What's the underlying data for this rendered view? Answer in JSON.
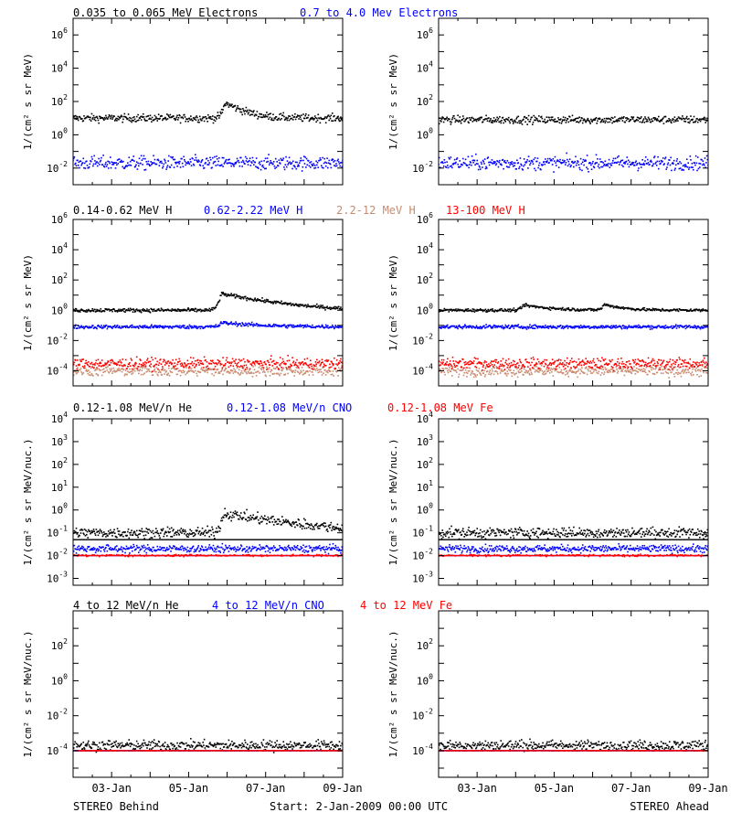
{
  "colors": {
    "black": "#000000",
    "blue": "#0000ff",
    "red": "#ff0000",
    "salmon": "#c98b6f"
  },
  "footer": {
    "left_label": "STEREO Behind",
    "start_label": "Start:  2-Jan-2009 00:00 UTC",
    "right_label": "STEREO Ahead"
  },
  "rows": [
    {
      "legend": [
        {
          "text": "0.035 to 0.065 MeV Electrons",
          "color": "#000000"
        },
        {
          "text": "0.7 to 4.0 Mev Electrons",
          "color": "#0000ff"
        }
      ],
      "ylabel": "1/(cm² s sr MeV)"
    },
    {
      "legend": [
        {
          "text": "0.14-0.62 MeV H",
          "color": "#000000"
        },
        {
          "text": "0.62-2.22 MeV H",
          "color": "#0000ff"
        },
        {
          "text": "2.2-12 MeV H",
          "color": "#c98b6f"
        },
        {
          "text": "13-100 MeV H",
          "color": "#ff0000"
        }
      ],
      "ylabel": "1/(cm² s sr MeV)"
    },
    {
      "legend": [
        {
          "text": "0.12-1.08 MeV/n He",
          "color": "#000000"
        },
        {
          "text": "0.12-1.08 MeV/n CNO",
          "color": "#0000ff"
        },
        {
          "text": "0.12-1.08 MeV Fe",
          "color": "#ff0000"
        }
      ],
      "ylabel": "1/(cm² s sr MeV/nuc.)"
    },
    {
      "legend": [
        {
          "text": "4 to 12 MeV/n He",
          "color": "#000000"
        },
        {
          "text": "4 to 12 MeV/n CNO",
          "color": "#0000ff"
        },
        {
          "text": "4 to 12 MeV Fe",
          "color": "#ff0000"
        }
      ],
      "ylabel": "1/(cm² s sr MeV/nuc.)"
    }
  ],
  "chart_data": [
    {
      "type": "scatter",
      "spacecraft": "STEREO Behind",
      "row": 0,
      "xlim": [
        "2009-01-02",
        "2009-01-09"
      ],
      "x_ticks": [
        "03-Jan",
        "05-Jan",
        "07-Jan",
        "09-Jan"
      ],
      "ylog": true,
      "ylim": [
        0.001,
        10000000
      ],
      "y_ticks": [
        {
          "mant": "10",
          "exp": "-2"
        },
        {
          "mant": "10",
          "exp": "0"
        },
        {
          "mant": "10",
          "exp": "2"
        },
        {
          "mant": "10",
          "exp": "4"
        },
        {
          "mant": "10",
          "exp": "6"
        }
      ],
      "series": [
        {
          "name": "0.035 to 0.065 MeV Electrons",
          "color": "#000000",
          "baseline": 10,
          "scatter": 1.3,
          "bumps": [
            {
              "t": 3.95,
              "peak": 80,
              "decay": 0.35
            }
          ]
        },
        {
          "name": "0.7 to 4.0 Mev Electrons",
          "color": "#0000ff",
          "baseline": 0.02,
          "scatter": 1.6,
          "bumps": []
        }
      ]
    },
    {
      "type": "scatter",
      "spacecraft": "STEREO Ahead",
      "row": 0,
      "xlim": [
        "2009-01-02",
        "2009-01-09"
      ],
      "x_ticks": [
        "03-Jan",
        "05-Jan",
        "07-Jan",
        "09-Jan"
      ],
      "ylog": true,
      "ylim": [
        0.001,
        10000000
      ],
      "y_ticks": [
        {
          "mant": "10",
          "exp": "-2"
        },
        {
          "mant": "10",
          "exp": "0"
        },
        {
          "mant": "10",
          "exp": "2"
        },
        {
          "mant": "10",
          "exp": "4"
        },
        {
          "mant": "10",
          "exp": "6"
        }
      ],
      "series": [
        {
          "name": "0.035 to 0.065 MeV Electrons",
          "color": "#000000",
          "baseline": 8,
          "scatter": 1.3,
          "bumps": []
        },
        {
          "name": "0.7 to 4.0 Mev Electrons",
          "color": "#0000ff",
          "baseline": 0.02,
          "scatter": 1.6,
          "bumps": []
        }
      ]
    },
    {
      "type": "scatter",
      "spacecraft": "STEREO Behind",
      "row": 1,
      "xlim": [
        "2009-01-02",
        "2009-01-09"
      ],
      "x_ticks": [
        "03-Jan",
        "05-Jan",
        "07-Jan",
        "09-Jan"
      ],
      "ylog": true,
      "ylim": [
        1e-05,
        1000000
      ],
      "y_ticks": [
        {
          "mant": "10",
          "exp": "-4"
        },
        {
          "mant": "10",
          "exp": "-2"
        },
        {
          "mant": "10",
          "exp": "0"
        },
        {
          "mant": "10",
          "exp": "2"
        },
        {
          "mant": "10",
          "exp": "4"
        },
        {
          "mant": "10",
          "exp": "6"
        }
      ],
      "series": [
        {
          "name": "0.14-0.62 MeV H",
          "color": "#000000",
          "baseline": 1.0,
          "scatter": 1.15,
          "bumps": [
            {
              "t": 3.85,
              "peak": 12,
              "decay": 0.9
            }
          ]
        },
        {
          "name": "0.62-2.22 MeV H",
          "color": "#0000ff",
          "baseline": 0.08,
          "scatter": 1.15,
          "bumps": [
            {
              "t": 3.85,
              "peak": 0.15,
              "decay": 0.9
            }
          ]
        },
        {
          "name": "2.2-12 MeV H",
          "color": "#c98b6f",
          "baseline": 0.0001,
          "scatter": 1.5,
          "bumps": []
        },
        {
          "name": "13-100 MeV H",
          "color": "#ff0000",
          "baseline": 0.0003,
          "scatter": 1.5,
          "bumps": []
        }
      ]
    },
    {
      "type": "scatter",
      "spacecraft": "STEREO Ahead",
      "row": 1,
      "xlim": [
        "2009-01-02",
        "2009-01-09"
      ],
      "x_ticks": [
        "03-Jan",
        "05-Jan",
        "07-Jan",
        "09-Jan"
      ],
      "ylog": true,
      "ylim": [
        1e-05,
        1000000
      ],
      "y_ticks": [
        {
          "mant": "10",
          "exp": "-4"
        },
        {
          "mant": "10",
          "exp": "-2"
        },
        {
          "mant": "10",
          "exp": "0"
        },
        {
          "mant": "10",
          "exp": "2"
        },
        {
          "mant": "10",
          "exp": "4"
        },
        {
          "mant": "10",
          "exp": "6"
        }
      ],
      "series": [
        {
          "name": "0.14-0.62 MeV H",
          "color": "#000000",
          "baseline": 1.0,
          "scatter": 1.12,
          "bumps": [
            {
              "t": 2.2,
              "peak": 2.2,
              "decay": 0.6
            },
            {
              "t": 4.3,
              "peak": 2.4,
              "decay": 0.4
            }
          ]
        },
        {
          "name": "0.62-2.22 MeV H",
          "color": "#0000ff",
          "baseline": 0.08,
          "scatter": 1.15,
          "bumps": []
        },
        {
          "name": "2.2-12 MeV H",
          "color": "#c98b6f",
          "baseline": 0.0001,
          "scatter": 1.5,
          "bumps": []
        },
        {
          "name": "13-100 MeV H",
          "color": "#ff0000",
          "baseline": 0.0003,
          "scatter": 1.5,
          "bumps": []
        }
      ]
    },
    {
      "type": "scatter",
      "spacecraft": "STEREO Behind",
      "row": 2,
      "xlim": [
        "2009-01-02",
        "2009-01-09"
      ],
      "x_ticks": [
        "03-Jan",
        "05-Jan",
        "07-Jan",
        "09-Jan"
      ],
      "ylog": true,
      "ylim": [
        0.0005,
        10000
      ],
      "y_ticks": [
        {
          "mant": "10",
          "exp": "-3"
        },
        {
          "mant": "10",
          "exp": "-2"
        },
        {
          "mant": "10",
          "exp": "-1"
        },
        {
          "mant": "10",
          "exp": "0"
        },
        {
          "mant": "10",
          "exp": "1"
        },
        {
          "mant": "10",
          "exp": "2"
        },
        {
          "mant": "10",
          "exp": "3"
        },
        {
          "mant": "10",
          "exp": "4"
        }
      ],
      "series": [
        {
          "name": "0.12-1.08 MeV/n He",
          "color": "#000000",
          "baseline": 0.1,
          "scatter": 1.3,
          "bumps": [
            {
              "t": 3.9,
              "peak": 0.7,
              "decay": 1.4
            }
          ],
          "floor": 0.05
        },
        {
          "name": "0.12-1.08 MeV/n CNO",
          "color": "#0000ff",
          "baseline": 0.02,
          "scatter": 1.2,
          "bumps": [],
          "floor": 0.01
        },
        {
          "name": "0.12-1.08 MeV Fe",
          "color": "#ff0000",
          "baseline": 0.01,
          "scatter": 1.05,
          "bumps": [],
          "floor": 0.01
        }
      ]
    },
    {
      "type": "scatter",
      "spacecraft": "STEREO Ahead",
      "row": 2,
      "xlim": [
        "2009-01-02",
        "2009-01-09"
      ],
      "x_ticks": [
        "03-Jan",
        "05-Jan",
        "07-Jan",
        "09-Jan"
      ],
      "ylog": true,
      "ylim": [
        0.0005,
        10000
      ],
      "y_ticks": [
        {
          "mant": "10",
          "exp": "-3"
        },
        {
          "mant": "10",
          "exp": "-2"
        },
        {
          "mant": "10",
          "exp": "-1"
        },
        {
          "mant": "10",
          "exp": "0"
        },
        {
          "mant": "10",
          "exp": "1"
        },
        {
          "mant": "10",
          "exp": "2"
        },
        {
          "mant": "10",
          "exp": "3"
        },
        {
          "mant": "10",
          "exp": "4"
        }
      ],
      "series": [
        {
          "name": "0.12-1.08 MeV/n He",
          "color": "#000000",
          "baseline": 0.1,
          "scatter": 1.3,
          "bumps": [],
          "floor": 0.05
        },
        {
          "name": "0.12-1.08 MeV/n CNO",
          "color": "#0000ff",
          "baseline": 0.02,
          "scatter": 1.2,
          "bumps": [],
          "floor": 0.01
        },
        {
          "name": "0.12-1.08 MeV Fe",
          "color": "#ff0000",
          "baseline": 0.01,
          "scatter": 1.05,
          "bumps": [],
          "floor": 0.01
        }
      ]
    },
    {
      "type": "scatter",
      "spacecraft": "STEREO Behind",
      "row": 3,
      "xlim": [
        "2009-01-02",
        "2009-01-09"
      ],
      "x_ticks": [
        "03-Jan",
        "05-Jan",
        "07-Jan",
        "09-Jan"
      ],
      "ylog": true,
      "ylim": [
        3e-06,
        10000
      ],
      "y_ticks": [
        {
          "mant": "10",
          "exp": "-4"
        },
        {
          "mant": "10",
          "exp": "-2"
        },
        {
          "mant": "10",
          "exp": "0"
        },
        {
          "mant": "10",
          "exp": "2"
        }
      ],
      "series": [
        {
          "name": "4 to 12 MeV/n He",
          "color": "#000000",
          "baseline": 0.0002,
          "scatter": 1.4,
          "bumps": [],
          "floor": 0.0001
        },
        {
          "name": "4 to 12 MeV/n CNO",
          "color": "#0000ff",
          "baseline": 0.0001,
          "scatter": 1.0,
          "bumps": [],
          "floor": 0.0001
        },
        {
          "name": "4 to 12 MeV Fe",
          "color": "#ff0000",
          "baseline": 0.0001,
          "scatter": 1.0,
          "bumps": [],
          "floor": 0.0001
        }
      ]
    },
    {
      "type": "scatter",
      "spacecraft": "STEREO Ahead",
      "row": 3,
      "xlim": [
        "2009-01-02",
        "2009-01-09"
      ],
      "x_ticks": [
        "03-Jan",
        "05-Jan",
        "07-Jan",
        "09-Jan"
      ],
      "ylog": true,
      "ylim": [
        3e-06,
        10000
      ],
      "y_ticks": [
        {
          "mant": "10",
          "exp": "-4"
        },
        {
          "mant": "10",
          "exp": "-2"
        },
        {
          "mant": "10",
          "exp": "0"
        },
        {
          "mant": "10",
          "exp": "2"
        }
      ],
      "series": [
        {
          "name": "4 to 12 MeV/n He",
          "color": "#000000",
          "baseline": 0.0002,
          "scatter": 1.4,
          "bumps": [],
          "floor": 0.0001
        },
        {
          "name": "4 to 12 MeV/n CNO",
          "color": "#0000ff",
          "baseline": 0.0001,
          "scatter": 1.0,
          "bumps": [],
          "floor": 0.0001
        },
        {
          "name": "4 to 12 MeV Fe",
          "color": "#ff0000",
          "baseline": 0.0001,
          "scatter": 1.0,
          "bumps": [],
          "floor": 0.0001
        }
      ]
    }
  ]
}
